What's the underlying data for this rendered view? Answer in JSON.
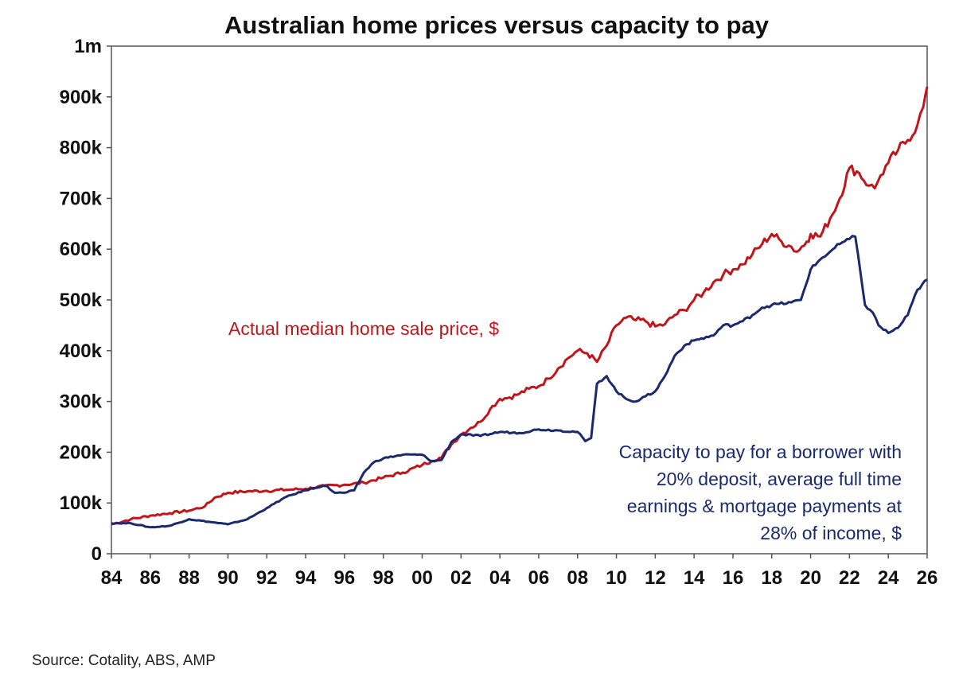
{
  "chart_data": {
    "type": "line",
    "title": "Australian home prices versus capacity to pay",
    "xlabel": "",
    "ylabel": "",
    "xlim": [
      1984,
      2026
    ],
    "ylim": [
      0,
      1000000
    ],
    "y_ticks": [
      {
        "value": 0,
        "label": "0"
      },
      {
        "value": 100000,
        "label": "100k"
      },
      {
        "value": 200000,
        "label": "200k"
      },
      {
        "value": 300000,
        "label": "300k"
      },
      {
        "value": 400000,
        "label": "400k"
      },
      {
        "value": 500000,
        "label": "500k"
      },
      {
        "value": 600000,
        "label": "600k"
      },
      {
        "value": 700000,
        "label": "700k"
      },
      {
        "value": 800000,
        "label": "800k"
      },
      {
        "value": 900000,
        "label": "900k"
      },
      {
        "value": 1000000,
        "label": "1m"
      }
    ],
    "x_ticks": [
      {
        "value": 1984,
        "label": "84"
      },
      {
        "value": 1986,
        "label": "86"
      },
      {
        "value": 1988,
        "label": "88"
      },
      {
        "value": 1990,
        "label": "90"
      },
      {
        "value": 1992,
        "label": "92"
      },
      {
        "value": 1994,
        "label": "94"
      },
      {
        "value": 1996,
        "label": "96"
      },
      {
        "value": 1998,
        "label": "98"
      },
      {
        "value": 2000,
        "label": "00"
      },
      {
        "value": 2002,
        "label": "02"
      },
      {
        "value": 2004,
        "label": "04"
      },
      {
        "value": 2006,
        "label": "06"
      },
      {
        "value": 2008,
        "label": "08"
      },
      {
        "value": 2010,
        "label": "10"
      },
      {
        "value": 2012,
        "label": "12"
      },
      {
        "value": 2014,
        "label": "14"
      },
      {
        "value": 2016,
        "label": "16"
      },
      {
        "value": 2018,
        "label": "18"
      },
      {
        "value": 2020,
        "label": "20"
      },
      {
        "value": 2022,
        "label": "22"
      },
      {
        "value": 2024,
        "label": "24"
      },
      {
        "value": 2026,
        "label": "26"
      }
    ],
    "series": [
      {
        "name": "Actual median home sale price, $",
        "color": "#c0161b",
        "points": [
          [
            1984.0,
            58000
          ],
          [
            1985.0,
            68000
          ],
          [
            1986.0,
            75000
          ],
          [
            1987.0,
            80000
          ],
          [
            1988.0,
            85000
          ],
          [
            1988.8,
            93000
          ],
          [
            1989.3,
            110000
          ],
          [
            1990.0,
            120000
          ],
          [
            1991.0,
            123000
          ],
          [
            1992.0,
            124000
          ],
          [
            1993.0,
            126000
          ],
          [
            1994.0,
            128000
          ],
          [
            1995.0,
            133000
          ],
          [
            1996.0,
            136000
          ],
          [
            1997.0,
            140000
          ],
          [
            1998.0,
            150000
          ],
          [
            1999.0,
            160000
          ],
          [
            2000.0,
            175000
          ],
          [
            2000.5,
            183000
          ],
          [
            2001.0,
            190000
          ],
          [
            2001.5,
            215000
          ],
          [
            2002.0,
            235000
          ],
          [
            2002.5,
            248000
          ],
          [
            2003.0,
            260000
          ],
          [
            2003.5,
            285000
          ],
          [
            2004.0,
            305000
          ],
          [
            2004.5,
            308000
          ],
          [
            2005.0,
            315000
          ],
          [
            2005.5,
            325000
          ],
          [
            2006.0,
            330000
          ],
          [
            2006.5,
            345000
          ],
          [
            2007.0,
            365000
          ],
          [
            2007.5,
            385000
          ],
          [
            2008.0,
            400000
          ],
          [
            2008.5,
            395000
          ],
          [
            2009.0,
            378000
          ],
          [
            2009.5,
            410000
          ],
          [
            2010.0,
            450000
          ],
          [
            2010.5,
            465000
          ],
          [
            2011.0,
            460000
          ],
          [
            2011.5,
            458000
          ],
          [
            2012.0,
            448000
          ],
          [
            2012.5,
            452000
          ],
          [
            2013.0,
            470000
          ],
          [
            2013.5,
            480000
          ],
          [
            2014.0,
            500000
          ],
          [
            2014.5,
            515000
          ],
          [
            2015.0,
            535000
          ],
          [
            2015.5,
            550000
          ],
          [
            2016.0,
            560000
          ],
          [
            2016.5,
            570000
          ],
          [
            2017.0,
            590000
          ],
          [
            2017.5,
            610000
          ],
          [
            2018.0,
            630000
          ],
          [
            2018.5,
            615000
          ],
          [
            2019.0,
            605000
          ],
          [
            2019.3,
            595000
          ],
          [
            2019.8,
            615000
          ],
          [
            2020.0,
            630000
          ],
          [
            2020.5,
            625000
          ],
          [
            2021.0,
            660000
          ],
          [
            2021.5,
            700000
          ],
          [
            2022.0,
            760000
          ],
          [
            2022.5,
            750000
          ],
          [
            2023.0,
            725000
          ],
          [
            2023.3,
            720000
          ],
          [
            2023.6,
            745000
          ],
          [
            2024.0,
            770000
          ],
          [
            2024.5,
            795000
          ],
          [
            2025.0,
            815000
          ],
          [
            2025.5,
            845000
          ],
          [
            2025.8,
            880000
          ],
          [
            2026.0,
            920000
          ]
        ]
      },
      {
        "name": "Capacity to pay for a borrower with 20% deposit, average full time earnings & mortgage payments at 28% of income, $",
        "color": "#1a2a6c",
        "points": [
          [
            1984.0,
            60000
          ],
          [
            1985.0,
            60000
          ],
          [
            1986.0,
            52000
          ],
          [
            1987.0,
            55000
          ],
          [
            1988.0,
            68000
          ],
          [
            1989.0,
            63000
          ],
          [
            1990.0,
            58000
          ],
          [
            1991.0,
            68000
          ],
          [
            1992.0,
            90000
          ],
          [
            1993.0,
            112000
          ],
          [
            1994.0,
            125000
          ],
          [
            1995.0,
            135000
          ],
          [
            1995.5,
            120000
          ],
          [
            1996.0,
            120000
          ],
          [
            1996.5,
            125000
          ],
          [
            1997.0,
            160000
          ],
          [
            1997.5,
            180000
          ],
          [
            1998.0,
            188000
          ],
          [
            1999.0,
            195000
          ],
          [
            2000.0,
            195000
          ],
          [
            2000.5,
            182000
          ],
          [
            2001.0,
            185000
          ],
          [
            2001.5,
            220000
          ],
          [
            2002.0,
            235000
          ],
          [
            2003.0,
            232000
          ],
          [
            2004.0,
            240000
          ],
          [
            2005.0,
            238000
          ],
          [
            2006.0,
            245000
          ],
          [
            2007.0,
            243000
          ],
          [
            2008.0,
            240000
          ],
          [
            2008.4,
            222000
          ],
          [
            2008.7,
            228000
          ],
          [
            2009.0,
            335000
          ],
          [
            2009.5,
            350000
          ],
          [
            2010.0,
            320000
          ],
          [
            2010.5,
            305000
          ],
          [
            2011.0,
            300000
          ],
          [
            2011.5,
            310000
          ],
          [
            2012.0,
            320000
          ],
          [
            2012.5,
            350000
          ],
          [
            2013.0,
            390000
          ],
          [
            2013.5,
            410000
          ],
          [
            2014.0,
            420000
          ],
          [
            2015.0,
            430000
          ],
          [
            2015.5,
            450000
          ],
          [
            2016.0,
            450000
          ],
          [
            2016.5,
            458000
          ],
          [
            2017.0,
            470000
          ],
          [
            2017.5,
            485000
          ],
          [
            2018.0,
            490000
          ],
          [
            2019.0,
            495000
          ],
          [
            2019.5,
            500000
          ],
          [
            2020.0,
            560000
          ],
          [
            2020.5,
            580000
          ],
          [
            2021.0,
            595000
          ],
          [
            2021.5,
            610000
          ],
          [
            2022.0,
            620000
          ],
          [
            2022.3,
            625000
          ],
          [
            2022.6,
            545000
          ],
          [
            2022.8,
            490000
          ],
          [
            2023.2,
            475000
          ],
          [
            2023.5,
            450000
          ],
          [
            2024.0,
            435000
          ],
          [
            2024.5,
            445000
          ],
          [
            2025.0,
            470000
          ],
          [
            2025.5,
            520000
          ],
          [
            2026.0,
            540000
          ]
        ]
      }
    ],
    "annotations": {
      "red_label": "Actual median home sale price, $",
      "blue_label_lines": [
        "Capacity to pay for a borrower with",
        "20% deposit, average full time",
        "earnings & mortgage payments at",
        "28% of income, $"
      ]
    },
    "grid": false
  },
  "source": "Source: Cotality, ABS, AMP"
}
